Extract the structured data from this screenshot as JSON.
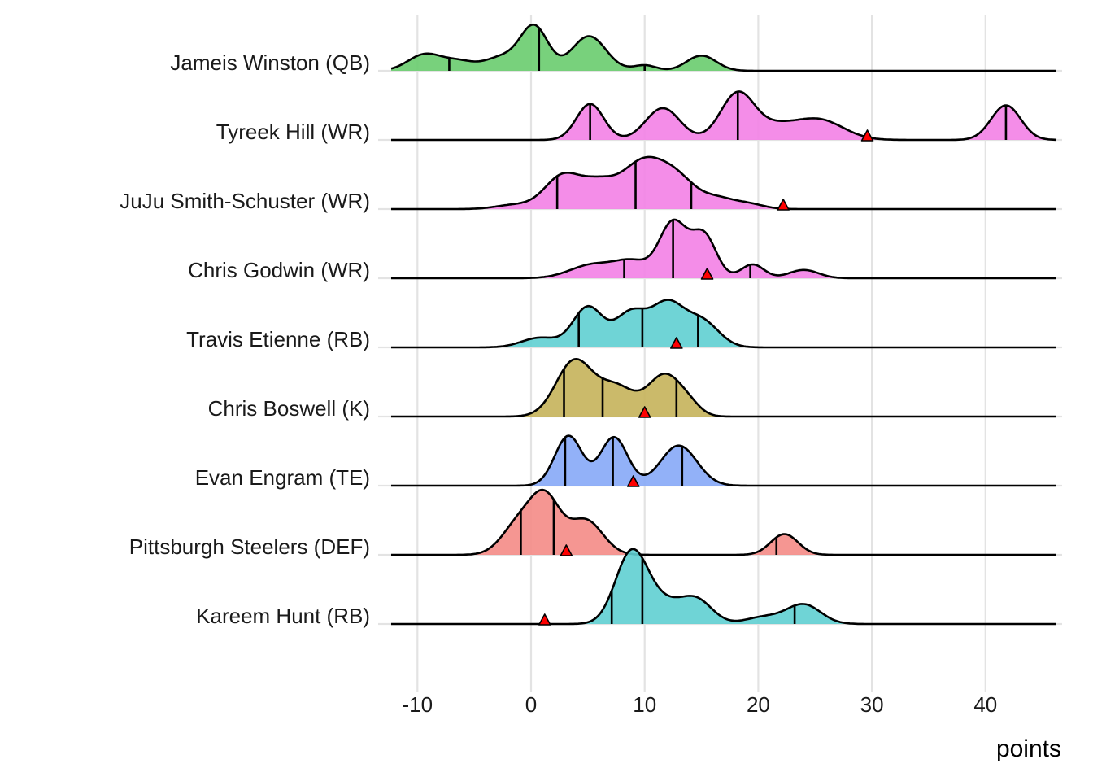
{
  "chart_data": {
    "type": "ridgeline",
    "title": "",
    "xlabel": "points",
    "ylabel": "",
    "xlim": [
      -12.5,
      46.5
    ],
    "x_ticks": [
      -10,
      0,
      10,
      20,
      30,
      40
    ],
    "x_tick_labels": [
      "-10",
      "0",
      "10",
      "20",
      "30",
      "40"
    ],
    "grid": true,
    "legend": "none",
    "marker_color": "#ff0000",
    "series": [
      {
        "name": "Jameis Winston (QB)",
        "color": "#69cc6e",
        "quantiles": [
          -7.2,
          0.7,
          10.0
        ],
        "projection": null,
        "bumps": [
          [
            -9.3,
            1.5,
            0.24
          ],
          [
            -6.3,
            1.3,
            0.12
          ],
          [
            -2.5,
            1.6,
            0.2
          ],
          [
            0.3,
            1.2,
            0.62
          ],
          [
            5.1,
            1.5,
            0.5
          ],
          [
            10.0,
            1.0,
            0.08
          ],
          [
            15.0,
            1.3,
            0.22
          ]
        ]
      },
      {
        "name": "Tyreek Hill (WR)",
        "color": "#f381e6",
        "quantiles": [
          5.2,
          18.2,
          41.8
        ],
        "projection": 29.6,
        "bumps": [
          [
            5.2,
            1.2,
            0.52
          ],
          [
            11.6,
            1.5,
            0.46
          ],
          [
            18.2,
            1.5,
            0.68
          ],
          [
            21.5,
            1.6,
            0.15
          ],
          [
            25.2,
            2.2,
            0.3
          ],
          [
            41.8,
            1.3,
            0.5
          ]
        ]
      },
      {
        "name": "JuJu Smith-Schuster (WR)",
        "color": "#f381e6",
        "quantiles": [
          2.3,
          9.2,
          14.1
        ],
        "projection": 22.2,
        "bumps": [
          [
            -1.5,
            1.6,
            0.06
          ],
          [
            2.8,
            1.6,
            0.48
          ],
          [
            6.0,
            1.5,
            0.34
          ],
          [
            9.5,
            1.7,
            0.55
          ],
          [
            12.5,
            1.9,
            0.5
          ],
          [
            16.5,
            1.3,
            0.12
          ],
          [
            19.0,
            1.4,
            0.08
          ]
        ]
      },
      {
        "name": "Chris Godwin (WR)",
        "color": "#f381e6",
        "quantiles": [
          8.2,
          12.5,
          19.3
        ],
        "projection": 15.5,
        "bumps": [
          [
            5.5,
            2.0,
            0.2
          ],
          [
            9.0,
            1.5,
            0.22
          ],
          [
            12.5,
            1.2,
            0.8
          ],
          [
            15.2,
            1.1,
            0.62
          ],
          [
            19.5,
            1.0,
            0.2
          ],
          [
            24.0,
            1.3,
            0.12
          ]
        ]
      },
      {
        "name": "Travis Etienne (RB)",
        "color": "#5fcfd2",
        "quantiles": [
          4.2,
          9.8,
          14.7
        ],
        "projection": 12.8,
        "bumps": [
          [
            0.8,
            1.6,
            0.14
          ],
          [
            5.0,
            1.3,
            0.58
          ],
          [
            8.8,
            1.4,
            0.5
          ],
          [
            12.0,
            1.4,
            0.6
          ],
          [
            15.0,
            1.5,
            0.38
          ]
        ]
      },
      {
        "name": "Chris Boswell (K)",
        "color": "#c5b35a",
        "quantiles": [
          2.9,
          6.3,
          12.8
        ],
        "projection": 10.0,
        "bumps": [
          [
            3.8,
            1.6,
            0.8
          ],
          [
            7.5,
            1.6,
            0.42
          ],
          [
            11.8,
            1.5,
            0.6
          ],
          [
            14.0,
            1.0,
            0.1
          ]
        ]
      },
      {
        "name": "Evan Engram (TE)",
        "color": "#86a9f7",
        "quantiles": [
          3.0,
          7.2,
          13.3
        ],
        "projection": 9.0,
        "bumps": [
          [
            3.3,
            1.2,
            0.72
          ],
          [
            7.3,
            1.2,
            0.7
          ],
          [
            13.0,
            1.6,
            0.58
          ]
        ]
      },
      {
        "name": "Pittsburgh Steelers (DEF)",
        "color": "#f48b86",
        "quantiles": [
          -0.9,
          2.0,
          21.6
        ],
        "projection": 3.1,
        "bumps": [
          [
            -1.0,
            1.5,
            0.46
          ],
          [
            1.3,
            1.3,
            0.75
          ],
          [
            4.8,
            1.5,
            0.5
          ],
          [
            22.3,
            1.2,
            0.3
          ]
        ]
      },
      {
        "name": "Kareem Hunt (RB)",
        "color": "#5fcfd2",
        "quantiles": [
          7.1,
          9.8,
          23.2
        ],
        "projection": 1.2,
        "bumps": [
          [
            8.8,
            1.4,
            0.98
          ],
          [
            11.5,
            1.8,
            0.3
          ],
          [
            14.6,
            1.4,
            0.32
          ],
          [
            20.5,
            1.6,
            0.1
          ],
          [
            24.0,
            1.5,
            0.28
          ]
        ]
      }
    ]
  }
}
